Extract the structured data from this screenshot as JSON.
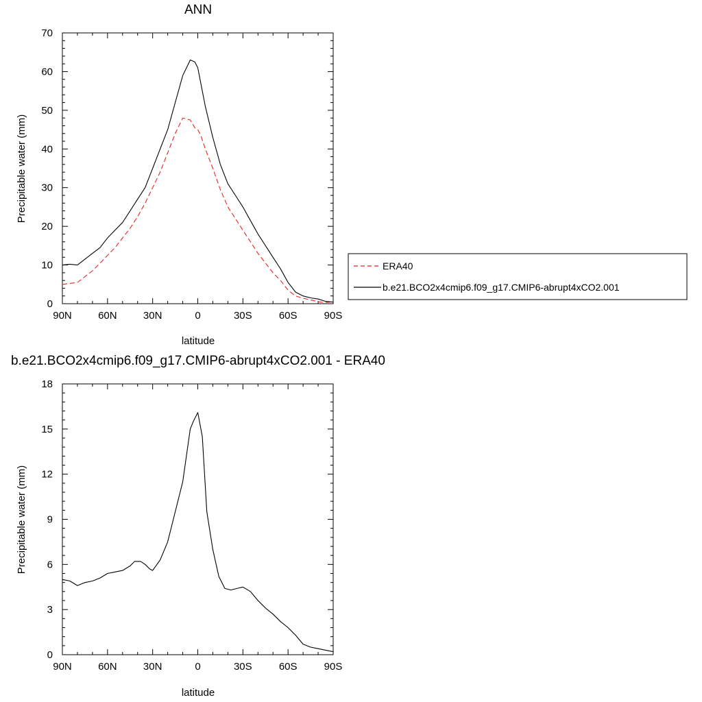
{
  "chart_data": [
    {
      "type": "line",
      "title": "ANN",
      "xlabel": "latitude",
      "ylabel": "Precipitable water (mm)",
      "xlim": [
        90,
        -90
      ],
      "ylim": [
        0,
        70
      ],
      "xticks": [
        90,
        60,
        30,
        0,
        -30,
        -60,
        -90
      ],
      "xtick_labels": [
        "90N",
        "60N",
        "30N",
        "0",
        "30S",
        "60S",
        "90S"
      ],
      "yticks": [
        0,
        10,
        20,
        30,
        40,
        50,
        60,
        70
      ],
      "ytick_labels": [
        "0",
        "10",
        "20",
        "30",
        "40",
        "50",
        "60",
        "70"
      ],
      "legend": "right",
      "series": [
        {
          "name": "ERA40",
          "color": "#e8231f",
          "dash": "dashed",
          "x": [
            90,
            80,
            75,
            70,
            65,
            60,
            55,
            50,
            45,
            40,
            35,
            30,
            25,
            20,
            15,
            10,
            5,
            2,
            0,
            -2,
            -5,
            -10,
            -15,
            -20,
            -25,
            -30,
            -35,
            -40,
            -45,
            -50,
            -55,
            -60,
            -65,
            -70,
            -75,
            -80,
            -85,
            -90
          ],
          "y": [
            5,
            5.5,
            7,
            8.5,
            10.5,
            12.5,
            14.5,
            17,
            19.5,
            22.5,
            26,
            30,
            34,
            39,
            44,
            48,
            47.5,
            45.5,
            45,
            43.5,
            40,
            35,
            29.5,
            25,
            22,
            19,
            16,
            13,
            10.5,
            8,
            6,
            3.5,
            2,
            1.4,
            1,
            0.5,
            0.3,
            0.5
          ]
        },
        {
          "name": "b.e21.BCO2x4cmip6.f09_g17.CMIP6-abrupt4xCO2.001",
          "color": "#000000",
          "dash": "solid",
          "x": [
            90,
            85,
            80,
            75,
            70,
            65,
            60,
            55,
            50,
            45,
            40,
            35,
            30,
            25,
            20,
            15,
            10,
            5,
            2,
            0,
            -2,
            -5,
            -10,
            -15,
            -20,
            -25,
            -30,
            -35,
            -40,
            -45,
            -50,
            -55,
            -60,
            -65,
            -70,
            -75,
            -80,
            -85,
            -90
          ],
          "y": [
            10,
            10.2,
            10,
            11.5,
            13,
            14.5,
            17,
            19,
            21,
            24,
            27,
            30,
            35,
            40,
            45,
            52,
            59,
            63,
            62.5,
            61,
            57,
            51,
            43,
            36,
            31,
            28,
            25,
            21.5,
            18,
            15,
            12,
            9,
            5.5,
            3,
            2,
            1.5,
            1.2,
            0.6,
            0.4
          ]
        }
      ]
    },
    {
      "type": "line",
      "title": "b.e21.BCO2x4cmip6.f09_g17.CMIP6-abrupt4xCO2.001 - ERA40",
      "xlabel": "latitude",
      "ylabel": "Precipitable water (mm)",
      "xlim": [
        90,
        -90
      ],
      "ylim": [
        0,
        18
      ],
      "xticks": [
        90,
        60,
        30,
        0,
        -30,
        -60,
        -90
      ],
      "xtick_labels": [
        "90N",
        "60N",
        "30N",
        "0",
        "30S",
        "60S",
        "90S"
      ],
      "yticks": [
        0,
        3,
        6,
        9,
        12,
        15,
        18
      ],
      "ytick_labels": [
        "0",
        "3",
        "6",
        "9",
        "12",
        "15",
        "18"
      ],
      "series": [
        {
          "color": "#000000",
          "dash": "solid",
          "x": [
            90,
            85,
            80,
            75,
            70,
            65,
            60,
            55,
            50,
            45,
            42,
            38,
            35,
            32,
            30,
            25,
            20,
            15,
            10,
            5,
            3,
            0,
            -3,
            -6,
            -10,
            -14,
            -18,
            -22,
            -26,
            -30,
            -35,
            -40,
            -45,
            -50,
            -55,
            -60,
            -65,
            -70,
            -75,
            -80,
            -85,
            -90
          ],
          "y": [
            5,
            4.9,
            4.6,
            4.8,
            4.9,
            5.1,
            5.4,
            5.5,
            5.6,
            5.9,
            6.2,
            6.2,
            6.0,
            5.7,
            5.6,
            6.3,
            7.5,
            9.5,
            11.5,
            15,
            15.5,
            16.1,
            14.5,
            9.5,
            7,
            5.2,
            4.4,
            4.3,
            4.4,
            4.5,
            4.2,
            3.6,
            3.1,
            2.7,
            2.2,
            1.8,
            1.3,
            0.7,
            0.5,
            0.4,
            0.3,
            0.2
          ]
        }
      ]
    }
  ]
}
